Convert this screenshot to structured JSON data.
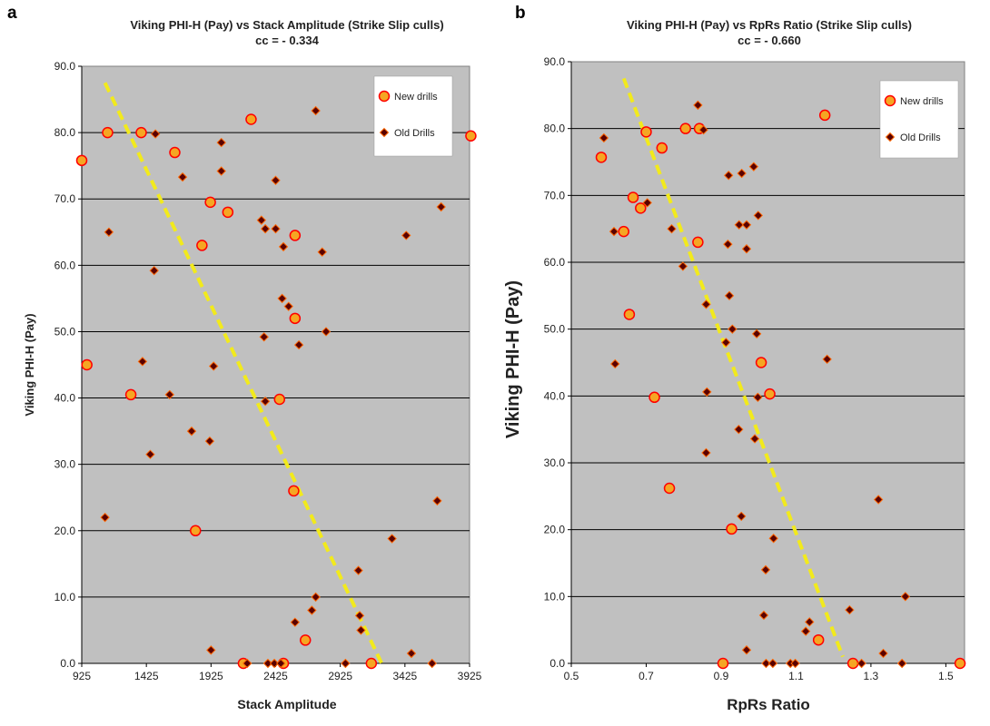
{
  "panels": [
    {
      "letter": "a"
    },
    {
      "letter": "b"
    }
  ],
  "chart_data": [
    {
      "type": "scatter",
      "title": "Viking PHI-H (Pay) vs Stack Amplitude (Strike Slip culls)",
      "subtitle": "cc = - 0.334",
      "xlabel": "Stack Amplitude",
      "ylabel": "Viking PHI-H (Pay)",
      "xlim": [
        925,
        3925
      ],
      "ylim": [
        0,
        90
      ],
      "xticks": [
        925,
        1425,
        1925,
        2425,
        2925,
        3425,
        3925
      ],
      "xtick_labels": [
        "925",
        "1425",
        "1925",
        "2425",
        "2925",
        "3425",
        "3925"
      ],
      "yticks": [
        0,
        10,
        20,
        30,
        40,
        50,
        60,
        70,
        80,
        90
      ],
      "ytick_labels": [
        "0.0",
        "10.0",
        "20.0",
        "30.0",
        "40.0",
        "50.0",
        "60.0",
        "70.0",
        "80.0",
        "90.0"
      ],
      "grid": "horizontal",
      "legend": "top-right",
      "trendline": {
        "x": [
          1105,
          3245
        ],
        "y": [
          87.5,
          0
        ]
      },
      "series": [
        {
          "name": "New drills",
          "marker": "circle",
          "color": "#f5a623",
          "edge": "#ff0000",
          "points": [
            [
              925,
              75.8
            ],
            [
              965,
              45
            ],
            [
              1125,
              80
            ],
            [
              1305,
              40.5
            ],
            [
              1385,
              80
            ],
            [
              1645,
              77
            ],
            [
              1920,
              69.5
            ],
            [
              2055,
              68
            ],
            [
              1855,
              63
            ],
            [
              2235,
              82
            ],
            [
              2575,
              64.5
            ],
            [
              2575,
              52
            ],
            [
              2455,
              39.8
            ],
            [
              2565,
              26
            ],
            [
              1805,
              20
            ],
            [
              2655,
              3.5
            ],
            [
              2175,
              0
            ],
            [
              2485,
              0
            ],
            [
              3165,
              0
            ],
            [
              3935,
              79.5
            ]
          ]
        },
        {
          "name": "Old Drills",
          "marker": "diamond",
          "color": "#5a0000",
          "edge": "#ff6600",
          "points": [
            [
              1495,
              79.8
            ],
            [
              2005,
              78.5
            ],
            [
              2735,
              83.3
            ],
            [
              1705,
              73.3
            ],
            [
              2005,
              74.2
            ],
            [
              2425,
              72.8
            ],
            [
              1135,
              65
            ],
            [
              2315,
              66.8
            ],
            [
              2345,
              65.5
            ],
            [
              2425,
              65.5
            ],
            [
              2485,
              62.8
            ],
            [
              3435,
              64.5
            ],
            [
              3705,
              68.8
            ],
            [
              1485,
              59.2
            ],
            [
              2785,
              62
            ],
            [
              2475,
              55
            ],
            [
              2525,
              53.8
            ],
            [
              2335,
              49.2
            ],
            [
              2605,
              48
            ],
            [
              2815,
              50
            ],
            [
              1395,
              45.5
            ],
            [
              1605,
              40.5
            ],
            [
              1945,
              44.8
            ],
            [
              2345,
              39.5
            ],
            [
              1775,
              35
            ],
            [
              1455,
              31.5
            ],
            [
              1915,
              33.5
            ],
            [
              1105,
              22
            ],
            [
              3675,
              24.5
            ],
            [
              3325,
              18.8
            ],
            [
              3065,
              14
            ],
            [
              2735,
              10
            ],
            [
              2705,
              8
            ],
            [
              3075,
              7.2
            ],
            [
              2575,
              6.2
            ],
            [
              3085,
              5
            ],
            [
              1925,
              2
            ],
            [
              3475,
              1.5
            ],
            [
              2205,
              0
            ],
            [
              2365,
              0
            ],
            [
              2415,
              0
            ],
            [
              2465,
              0
            ],
            [
              2965,
              0
            ],
            [
              3635,
              0
            ]
          ]
        }
      ]
    },
    {
      "type": "scatter",
      "title": "Viking PHI-H (Pay) vs RpRs Ratio (Strike Slip culls)",
      "subtitle": "cc = - 0.660",
      "xlabel": "RpRs Ratio",
      "ylabel": "Viking PHI-H (Pay)",
      "xlim": [
        0.5,
        1.55
      ],
      "ylim": [
        0,
        90
      ],
      "xticks": [
        0.5,
        0.7,
        0.9,
        1.1,
        1.3,
        1.5
      ],
      "xtick_labels": [
        "0.5",
        "0.7",
        "0.9",
        "1.1",
        "1.3",
        "1.5"
      ],
      "yticks": [
        0,
        10,
        20,
        30,
        40,
        50,
        60,
        70,
        80,
        90
      ],
      "ytick_labels": [
        "0.0",
        "10.0",
        "20.0",
        "30.0",
        "40.0",
        "50.0",
        "60.0",
        "70.0",
        "80.0",
        "90.0"
      ],
      "grid": "horizontal",
      "legend": "top-right",
      "trendline": {
        "x": [
          0.64,
          1.225
        ],
        "y": [
          87.5,
          1
        ]
      },
      "series": [
        {
          "name": "New drills",
          "marker": "circle",
          "color": "#f5a623",
          "edge": "#ff0000",
          "points": [
            [
              0.58,
              75.7
            ],
            [
              0.665,
              69.7
            ],
            [
              0.64,
              64.6
            ],
            [
              0.7,
              79.5
            ],
            [
              0.685,
              68.1
            ],
            [
              0.742,
              77.1
            ],
            [
              0.805,
              80
            ],
            [
              0.842,
              80
            ],
            [
              0.838,
              63
            ],
            [
              1.177,
              82
            ],
            [
              0.655,
              52.2
            ],
            [
              1.007,
              45
            ],
            [
              0.722,
              39.8
            ],
            [
              1.03,
              40.3
            ],
            [
              0.762,
              26.2
            ],
            [
              0.928,
              20.1
            ],
            [
              1.16,
              3.5
            ],
            [
              0.905,
              0
            ],
            [
              1.252,
              0
            ],
            [
              1.538,
              0
            ]
          ]
        },
        {
          "name": "Old Drills",
          "marker": "diamond",
          "color": "#5a0000",
          "edge": "#ff6600",
          "points": [
            [
              0.587,
              78.6
            ],
            [
              0.838,
              83.5
            ],
            [
              0.853,
              79.8
            ],
            [
              0.92,
              73
            ],
            [
              0.955,
              73.3
            ],
            [
              0.987,
              74.3
            ],
            [
              0.614,
              64.6
            ],
            [
              0.703,
              68.9
            ],
            [
              0.768,
              65
            ],
            [
              0.948,
              65.6
            ],
            [
              0.968,
              65.6
            ],
            [
              0.999,
              67
            ],
            [
              0.798,
              59.4
            ],
            [
              0.918,
              62.7
            ],
            [
              0.968,
              62
            ],
            [
              0.922,
              55
            ],
            [
              0.86,
              53.7
            ],
            [
              0.93,
              50
            ],
            [
              0.995,
              49.3
            ],
            [
              0.913,
              48
            ],
            [
              0.617,
              44.8
            ],
            [
              1.183,
              45.5
            ],
            [
              0.862,
              40.6
            ],
            [
              0.998,
              39.8
            ],
            [
              0.947,
              35
            ],
            [
              0.99,
              33.6
            ],
            [
              0.86,
              31.5
            ],
            [
              0.954,
              22
            ],
            [
              1.32,
              24.5
            ],
            [
              1.04,
              18.7
            ],
            [
              1.019,
              14
            ],
            [
              1.392,
              10
            ],
            [
              1.014,
              7.2
            ],
            [
              1.243,
              8
            ],
            [
              1.136,
              6.2
            ],
            [
              1.126,
              4.8
            ],
            [
              0.968,
              2
            ],
            [
              1.333,
              1.5
            ],
            [
              1.02,
              0
            ],
            [
              1.038,
              0
            ],
            [
              1.085,
              0
            ],
            [
              1.098,
              0
            ],
            [
              1.275,
              0
            ],
            [
              1.383,
              0
            ]
          ]
        }
      ]
    }
  ]
}
